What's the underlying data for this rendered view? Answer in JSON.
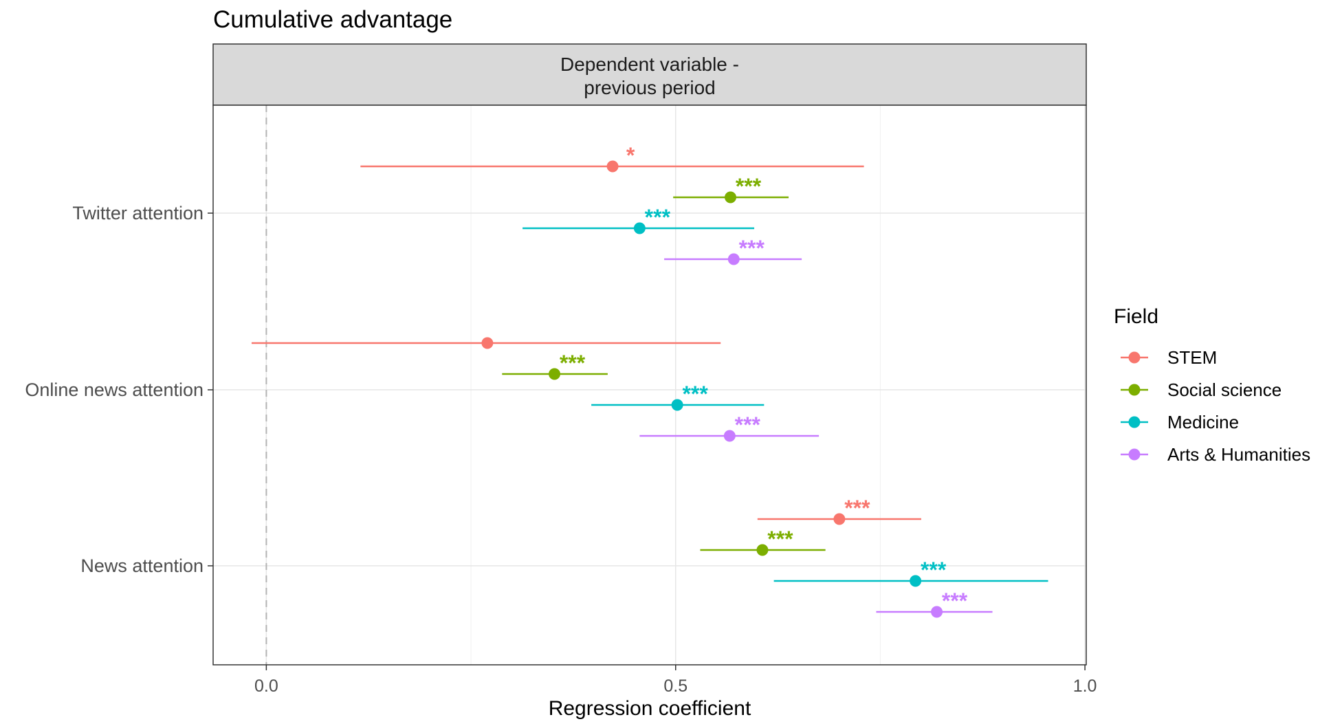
{
  "chart_data": {
    "type": "scatter",
    "subtype": "coefficient-plot",
    "title": "Cumulative advantage",
    "facet_label": [
      "Dependent variable -",
      "previous period"
    ],
    "xlabel": "Regression coefficient",
    "ylabel": "",
    "xlim": [
      -0.065,
      1.0
    ],
    "x_ticks": [
      0.0,
      0.5,
      1.0
    ],
    "x_tick_labels": [
      "0.0",
      "0.5",
      "1.0"
    ],
    "x_minor_gridlines": [
      0.25,
      0.75
    ],
    "reference_line": 0.0,
    "grid": true,
    "categories": [
      "Twitter attention",
      "Online news attention",
      "News attention"
    ],
    "legend": {
      "title": "Field",
      "position": "right"
    },
    "series": [
      {
        "name": "STEM",
        "color": "#F8766D",
        "points": [
          {
            "category": "Twitter attention",
            "estimate": 0.423,
            "lower": 0.115,
            "upper": 0.73,
            "significance": "*"
          },
          {
            "category": "Online news attention",
            "estimate": 0.27,
            "lower": -0.018,
            "upper": 0.555,
            "significance": ""
          },
          {
            "category": "News attention",
            "estimate": 0.7,
            "lower": 0.6,
            "upper": 0.8,
            "significance": "***"
          }
        ]
      },
      {
        "name": "Social science",
        "color": "#7CAE00",
        "points": [
          {
            "category": "Twitter attention",
            "estimate": 0.567,
            "lower": 0.497,
            "upper": 0.638,
            "significance": "***"
          },
          {
            "category": "Online news attention",
            "estimate": 0.352,
            "lower": 0.288,
            "upper": 0.417,
            "significance": "***"
          },
          {
            "category": "News attention",
            "estimate": 0.606,
            "lower": 0.53,
            "upper": 0.683,
            "significance": "***"
          }
        ]
      },
      {
        "name": "Medicine",
        "color": "#00BFC4",
        "points": [
          {
            "category": "Twitter attention",
            "estimate": 0.456,
            "lower": 0.313,
            "upper": 0.596,
            "significance": "***"
          },
          {
            "category": "Online news attention",
            "estimate": 0.502,
            "lower": 0.397,
            "upper": 0.608,
            "significance": "***"
          },
          {
            "category": "News attention",
            "estimate": 0.793,
            "lower": 0.62,
            "upper": 0.955,
            "significance": "***"
          }
        ]
      },
      {
        "name": "Arts & Humanities",
        "color": "#C77CFF",
        "points": [
          {
            "category": "Twitter attention",
            "estimate": 0.571,
            "lower": 0.486,
            "upper": 0.654,
            "significance": "***"
          },
          {
            "category": "Online news attention",
            "estimate": 0.566,
            "lower": 0.456,
            "upper": 0.675,
            "significance": "***"
          },
          {
            "category": "News attention",
            "estimate": 0.819,
            "lower": 0.745,
            "upper": 0.887,
            "significance": "***"
          }
        ]
      }
    ]
  }
}
